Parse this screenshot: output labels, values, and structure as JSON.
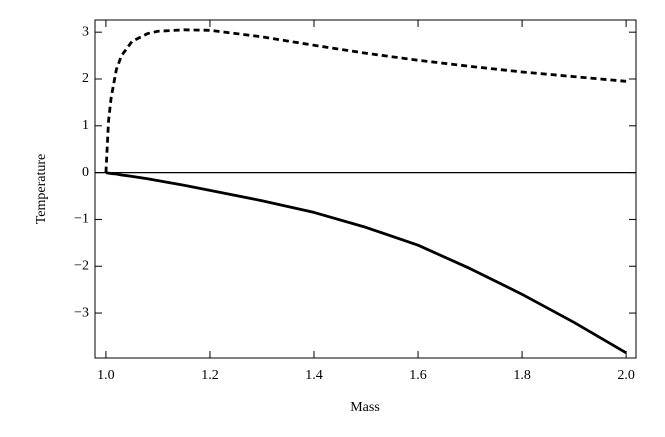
{
  "chart_data": {
    "type": "line",
    "x_label": "Mass",
    "y_label": "Temperature",
    "x": [
      1.0,
      1.005,
      1.01,
      1.02,
      1.03,
      1.05,
      1.08,
      1.1,
      1.15,
      1.2,
      1.3,
      1.4,
      1.5,
      1.6,
      1.7,
      1.8,
      1.9,
      2.0
    ],
    "series": [
      {
        "color": "#000000",
        "dashed": true,
        "values": [
          0,
          1.1,
          1.6,
          2.2,
          2.5,
          2.8,
          2.97,
          3.02,
          3.05,
          3.04,
          2.9,
          2.72,
          2.55,
          2.4,
          2.27,
          2.15,
          2.05,
          1.95
        ]
      },
      {
        "color": "#000000",
        "dashed": false,
        "values": [
          0,
          -0.01,
          -0.02,
          -0.03,
          -0.05,
          -0.08,
          -0.13,
          -0.17,
          -0.27,
          -0.38,
          -0.6,
          -0.85,
          -1.17,
          -1.55,
          -2.05,
          -2.6,
          -3.2,
          -3.85
        ]
      }
    ],
    "xlim": [
      0.979,
      2.019
    ],
    "ylim": [
      -3.96,
      3.26
    ],
    "xticks": [
      {
        "value": 1.0,
        "label": "1.0"
      },
      1.2,
      1.4,
      1.6,
      1.8,
      {
        "value": 2.0,
        "label": "2.0"
      }
    ],
    "yticks": [
      {
        "value": -3,
        "label": "−3"
      },
      {
        "value": -2,
        "label": "−2"
      },
      {
        "value": -1,
        "label": "−1"
      },
      0,
      1,
      2,
      3
    ],
    "zero_line": true,
    "grid": false
  }
}
